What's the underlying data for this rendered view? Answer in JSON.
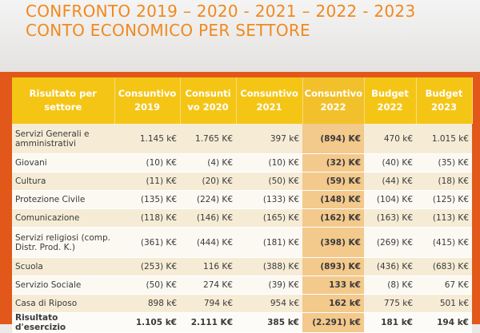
{
  "title": {
    "line1": "CONFRONTO 2019 – 2020 - 2021 – 2022 - 2023",
    "line2": "CONTO ECONOMICO PER SETTORE"
  },
  "table": {
    "headers": [
      "Risultato per settore",
      "Consuntivo 2019",
      "Consunti vo 2020",
      "Consuntivo 2021",
      "Consuntivo 2022",
      "Budget 2022",
      "Budget 2023"
    ],
    "rows": [
      [
        "Servizi Generali e amministrativi",
        "1.145 k€",
        "1.765 K€",
        "397 k€",
        "(894) K€",
        "470 k€",
        "1.015 k€"
      ],
      [
        "Giovani",
        "(10) K€",
        "(4) K€",
        "(10) K€",
        "(32) K€",
        "(40) K€",
        "(35) K€"
      ],
      [
        "Cultura",
        "(11) K€",
        "(20) K€",
        "(50) K€",
        "(59) K€",
        "(44) K€",
        "(18) K€"
      ],
      [
        "Protezione Civile",
        "(135) K€",
        "(224) K€",
        "(133) K€",
        "(148) K€",
        "(104) K€",
        "(125) K€"
      ],
      [
        "Comunicazione",
        "(118) K€",
        "(146) K€",
        "(165) K€",
        "(162) K€",
        "(163) K€",
        "(113) K€"
      ],
      [
        "Servizi religiosi (comp. Distr. Prod. K.)",
        "(361) K€",
        "(444) K€",
        "(181) K€",
        "(398) K€",
        "(269) K€",
        "(415) K€"
      ],
      [
        "Scuola",
        "(253) K€",
        "116 K€",
        "(388) K€",
        "(893) K€",
        "(436) K€",
        "(683) K€"
      ],
      [
        "Servizio Sociale",
        "(50) K€",
        "274 K€",
        "(39) K€",
        "133 k€",
        "(8) K€",
        "67 K€"
      ],
      [
        "Casa di Riposo",
        "898 k€",
        "794 k€",
        "954 k€",
        "162 k€",
        "775 k€",
        "501 k€"
      ],
      [
        "Risultato d'esercizio",
        "1.105 k€",
        "2.111 K€",
        "385 k€",
        "(2.291) k€",
        "181 k€",
        "194 k€"
      ]
    ]
  }
}
